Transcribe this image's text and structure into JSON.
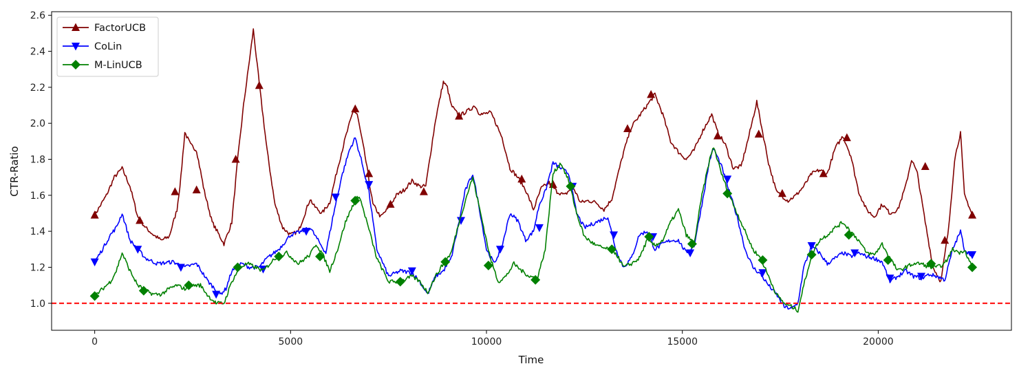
{
  "chart_data": {
    "type": "line",
    "xlabel": "Time",
    "ylabel": "CTR-Ratio",
    "xlim": [
      -1100,
      23400
    ],
    "ylim": [
      0.85,
      2.62
    ],
    "x_ticks": [
      0,
      5000,
      10000,
      15000,
      20000
    ],
    "y_ticks": [
      1.0,
      1.2,
      1.4,
      1.6,
      1.8,
      2.0,
      2.2,
      2.4,
      2.6
    ],
    "grid": false,
    "legend_position": "upper-left",
    "reference_line": {
      "y": 1.0,
      "color": "#ff0000",
      "style": "dashed"
    },
    "series": [
      {
        "name": "FactorUCB",
        "color": "#800000",
        "marker": "triangle-up",
        "x": [
          0,
          300,
          500,
          700,
          900,
          1100,
          1300,
          1500,
          1700,
          1900,
          2100,
          2200,
          2300,
          2450,
          2600,
          2800,
          3000,
          3200,
          3300,
          3500,
          3650,
          3800,
          3950,
          4050,
          4200,
          4400,
          4600,
          4800,
          5000,
          5200,
          5400,
          5500,
          5600,
          5800,
          6000,
          6200,
          6400,
          6600,
          6700,
          6900,
          7100,
          7300,
          7500,
          7700,
          7900,
          8100,
          8300,
          8450,
          8700,
          8900,
          9000,
          9100,
          9300,
          9600,
          9700,
          9800,
          9900,
          10100,
          10200,
          10400,
          10600,
          10800,
          11000,
          11200,
          11400,
          11600,
          11800,
          12000,
          12200,
          12400,
          12600,
          12800,
          13000,
          13200,
          13500,
          13700,
          13900,
          14100,
          14300,
          14500,
          14700,
          14900,
          15100,
          15300,
          15500,
          15750,
          15900,
          16100,
          16300,
          16500,
          16700,
          16900,
          17050,
          17200,
          17400,
          17700,
          17900,
          18100,
          18300,
          18500,
          18700,
          18900,
          19100,
          19300,
          19500,
          19700,
          19900,
          20100,
          20300,
          20500,
          20700,
          20850,
          21000,
          21200,
          21400,
          21600,
          21800,
          21950,
          22100,
          22200,
          22300,
          22400
        ],
        "values": [
          1.49,
          1.6,
          1.7,
          1.75,
          1.65,
          1.48,
          1.42,
          1.38,
          1.35,
          1.37,
          1.52,
          1.7,
          1.95,
          1.88,
          1.85,
          1.62,
          1.45,
          1.37,
          1.33,
          1.45,
          1.8,
          2.1,
          2.35,
          2.52,
          2.22,
          1.85,
          1.55,
          1.42,
          1.38,
          1.4,
          1.52,
          1.58,
          1.54,
          1.5,
          1.56,
          1.75,
          1.92,
          2.07,
          2.05,
          1.82,
          1.55,
          1.48,
          1.53,
          1.6,
          1.63,
          1.68,
          1.65,
          1.65,
          2.02,
          2.23,
          2.2,
          2.1,
          2.04,
          2.08,
          2.1,
          2.06,
          2.05,
          2.06,
          2.02,
          1.92,
          1.75,
          1.7,
          1.63,
          1.52,
          1.64,
          1.67,
          1.62,
          1.6,
          1.65,
          1.56,
          1.57,
          1.56,
          1.52,
          1.58,
          1.84,
          1.98,
          2.04,
          2.1,
          2.16,
          2.05,
          1.9,
          1.84,
          1.8,
          1.85,
          1.95,
          2.05,
          1.95,
          1.88,
          1.75,
          1.76,
          1.93,
          2.12,
          1.95,
          1.78,
          1.62,
          1.57,
          1.6,
          1.65,
          1.72,
          1.74,
          1.72,
          1.86,
          1.93,
          1.82,
          1.62,
          1.52,
          1.48,
          1.55,
          1.5,
          1.52,
          1.65,
          1.8,
          1.72,
          1.45,
          1.2,
          1.12,
          1.42,
          1.8,
          1.95,
          1.6,
          1.55,
          1.49
        ],
        "marker_x": [
          0,
          1150,
          2050,
          2600,
          3600,
          4200,
          6650,
          7000,
          7550,
          8400,
          9300,
          10900,
          11700,
          13600,
          14200,
          15900,
          16950,
          17550,
          18600,
          19200,
          21200,
          21700,
          22400
        ],
        "marker_values": [
          1.49,
          1.46,
          1.62,
          1.63,
          1.8,
          2.21,
          2.08,
          1.72,
          1.55,
          1.62,
          2.04,
          1.69,
          1.66,
          1.97,
          2.16,
          1.93,
          1.94,
          1.61,
          1.72,
          1.92,
          1.76,
          1.35,
          1.49
        ]
      },
      {
        "name": "CoLin",
        "color": "#0000ff",
        "marker": "triangle-down",
        "x": [
          0,
          200,
          400,
          550,
          700,
          900,
          1100,
          1300,
          1600,
          2000,
          2300,
          2600,
          2900,
          3200,
          3350,
          3500,
          3750,
          3950,
          4200,
          4400,
          4700,
          5000,
          5300,
          5500,
          5700,
          5900,
          6100,
          6300,
          6500,
          6650,
          6800,
          7000,
          7200,
          7500,
          7800,
          8100,
          8300,
          8500,
          8700,
          8900,
          9100,
          9300,
          9450,
          9650,
          9800,
          10000,
          10200,
          10400,
          10600,
          10800,
          11000,
          11200,
          11350,
          11500,
          11700,
          11900,
          12100,
          12300,
          12500,
          12800,
          13100,
          13300,
          13500,
          13700,
          13900,
          14100,
          14300,
          14500,
          14700,
          14900,
          15100,
          15300,
          15500,
          15700,
          15800,
          16000,
          16200,
          16400,
          16600,
          16800,
          17000,
          17200,
          17400,
          17600,
          17800,
          17950,
          18100,
          18300,
          18500,
          18700,
          18900,
          19100,
          19300,
          19500,
          19700,
          19900,
          20100,
          20300,
          20500,
          20700,
          20900,
          21100,
          21300,
          21500,
          21700,
          21900,
          22100,
          22200,
          22300,
          22400
        ],
        "values": [
          1.23,
          1.3,
          1.38,
          1.42,
          1.5,
          1.35,
          1.3,
          1.25,
          1.22,
          1.23,
          1.2,
          1.22,
          1.12,
          1.05,
          1.08,
          1.18,
          1.22,
          1.2,
          1.2,
          1.25,
          1.3,
          1.38,
          1.4,
          1.42,
          1.35,
          1.28,
          1.5,
          1.7,
          1.85,
          1.92,
          1.8,
          1.62,
          1.3,
          1.15,
          1.18,
          1.17,
          1.12,
          1.05,
          1.15,
          1.18,
          1.25,
          1.45,
          1.62,
          1.72,
          1.55,
          1.3,
          1.22,
          1.32,
          1.5,
          1.46,
          1.35,
          1.4,
          1.55,
          1.62,
          1.78,
          1.75,
          1.72,
          1.5,
          1.42,
          1.45,
          1.48,
          1.3,
          1.2,
          1.25,
          1.38,
          1.4,
          1.3,
          1.33,
          1.35,
          1.35,
          1.28,
          1.32,
          1.55,
          1.8,
          1.86,
          1.76,
          1.62,
          1.48,
          1.3,
          1.2,
          1.16,
          1.1,
          1.05,
          0.98,
          0.97,
          1.0,
          1.2,
          1.32,
          1.28,
          1.22,
          1.25,
          1.28,
          1.26,
          1.28,
          1.26,
          1.25,
          1.23,
          1.12,
          1.15,
          1.18,
          1.15,
          1.14,
          1.16,
          1.15,
          1.13,
          1.3,
          1.4,
          1.3,
          1.28,
          1.27
        ],
        "marker_x": [
          0,
          1100,
          2200,
          3100,
          4300,
          5400,
          6150,
          7000,
          8100,
          9350,
          10350,
          11350,
          12200,
          13250,
          14250,
          15200,
          16150,
          17050,
          18300,
          19400,
          20300,
          21100,
          22400
        ],
        "marker_values": [
          1.23,
          1.3,
          1.2,
          1.05,
          1.19,
          1.4,
          1.59,
          1.66,
          1.18,
          1.46,
          1.3,
          1.42,
          1.65,
          1.38,
          1.37,
          1.28,
          1.69,
          1.17,
          1.32,
          1.28,
          1.14,
          1.15,
          1.27
        ]
      },
      {
        "name": "M-LinUCB",
        "color": "#008000",
        "marker": "diamond",
        "x": [
          0,
          200,
          400,
          550,
          700,
          900,
          1100,
          1300,
          1500,
          1700,
          1900,
          2100,
          2300,
          2500,
          2700,
          2900,
          3100,
          3300,
          3500,
          3700,
          3900,
          4100,
          4300,
          4600,
          4900,
          5200,
          5500,
          5650,
          5800,
          6000,
          6200,
          6400,
          6600,
          6750,
          6950,
          7200,
          7500,
          7800,
          8100,
          8300,
          8500,
          8700,
          8900,
          9100,
          9300,
          9500,
          9650,
          9850,
          10100,
          10300,
          10500,
          10700,
          10900,
          11100,
          11300,
          11500,
          11700,
          11900,
          12100,
          12300,
          12500,
          12800,
          13100,
          13300,
          13500,
          13700,
          13900,
          14100,
          14300,
          14500,
          14700,
          14900,
          15100,
          15300,
          15500,
          15700,
          15800,
          16000,
          16200,
          16400,
          16600,
          16800,
          17000,
          17200,
          17400,
          17600,
          17800,
          17950,
          18100,
          18300,
          18500,
          18700,
          18900,
          19100,
          19300,
          19500,
          19700,
          19900,
          20100,
          20300,
          20500,
          20700,
          20900,
          21100,
          21300,
          21500,
          21700,
          21900,
          22100,
          22200,
          22300,
          22400
        ],
        "values": [
          1.04,
          1.08,
          1.12,
          1.18,
          1.28,
          1.18,
          1.1,
          1.07,
          1.05,
          1.05,
          1.08,
          1.1,
          1.08,
          1.1,
          1.1,
          1.04,
          1.0,
          1.0,
          1.12,
          1.2,
          1.22,
          1.2,
          1.18,
          1.25,
          1.28,
          1.22,
          1.27,
          1.33,
          1.28,
          1.18,
          1.3,
          1.45,
          1.55,
          1.6,
          1.45,
          1.25,
          1.12,
          1.12,
          1.15,
          1.12,
          1.06,
          1.15,
          1.22,
          1.28,
          1.45,
          1.6,
          1.7,
          1.5,
          1.25,
          1.12,
          1.15,
          1.22,
          1.18,
          1.15,
          1.14,
          1.3,
          1.72,
          1.78,
          1.68,
          1.5,
          1.37,
          1.32,
          1.3,
          1.28,
          1.2,
          1.22,
          1.25,
          1.35,
          1.32,
          1.35,
          1.45,
          1.52,
          1.38,
          1.33,
          1.6,
          1.8,
          1.87,
          1.72,
          1.6,
          1.5,
          1.4,
          1.3,
          1.25,
          1.15,
          1.05,
          1.0,
          0.98,
          0.96,
          1.1,
          1.27,
          1.35,
          1.38,
          1.42,
          1.45,
          1.4,
          1.35,
          1.28,
          1.27,
          1.33,
          1.25,
          1.18,
          1.2,
          1.22,
          1.22,
          1.2,
          1.2,
          1.22,
          1.3,
          1.28,
          1.3,
          1.25,
          1.2
        ],
        "marker_x": [
          0,
          1250,
          2400,
          3650,
          4700,
          5750,
          6650,
          7800,
          8950,
          10050,
          11250,
          12150,
          13200,
          14150,
          15250,
          16150,
          17050,
          18300,
          19250,
          20250,
          21350,
          22400
        ],
        "marker_values": [
          1.04,
          1.07,
          1.1,
          1.2,
          1.26,
          1.26,
          1.57,
          1.12,
          1.23,
          1.21,
          1.13,
          1.65,
          1.3,
          1.37,
          1.33,
          1.61,
          1.24,
          1.27,
          1.38,
          1.24,
          1.22,
          1.2
        ]
      }
    ]
  }
}
